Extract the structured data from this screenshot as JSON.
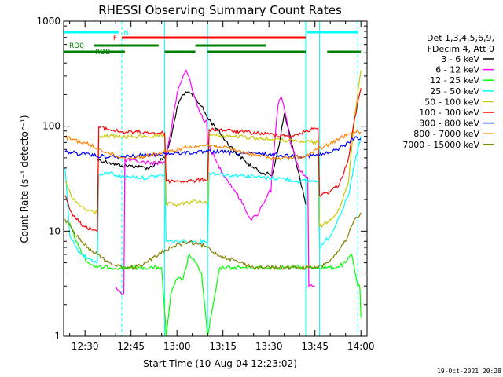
{
  "chart_data": {
    "type": "line",
    "title": "RHESSI Observing Summary Count Rates",
    "xlabel": "Start Time (10-Aug-04 12:23:02)",
    "ylabel": "Count Rate (s⁻¹ detector⁻¹)",
    "ylog": true,
    "ylim": [
      1,
      1000
    ],
    "xlim": [
      "12:23:02",
      "14:02:00"
    ],
    "x_ticks": [
      "12:30",
      "12:45",
      "13:00",
      "13:15",
      "13:30",
      "13:45",
      "14:00"
    ],
    "y_ticks": [
      "1",
      "10",
      "100",
      "1000"
    ],
    "legend_header": [
      "Det 1,3,4,5,6,9,",
      "FDecim 4, Att 0"
    ],
    "timestamp": "19-Oct-2021 20:28",
    "flag_bars": [
      {
        "label": "N",
        "color": "#00ffff",
        "segments": [
          [
            "12:23:02",
            "12:41:00"
          ],
          [
            "13:42:30",
            "13:59:00"
          ]
        ]
      },
      {
        "label": "F",
        "color": "#ff0000",
        "segments": [
          [
            "12:42:00",
            "13:42:00"
          ]
        ]
      },
      {
        "label": "RD0",
        "color": "#008000",
        "segments": [
          [
            "12:33:00",
            "12:54:00"
          ],
          [
            "13:06:00",
            "13:29:00"
          ]
        ]
      },
      {
        "label": "RDB",
        "color": "#008000",
        "segments": [
          [
            "12:23:02",
            "12:43:00"
          ],
          [
            "12:56:00",
            "13:06:00"
          ],
          [
            "13:10:00",
            "13:42:00"
          ],
          [
            "13:49:00",
            "14:00:00"
          ]
        ]
      }
    ],
    "dashed_vlines": [
      "12:42:00",
      "13:59:00"
    ],
    "solid_vlines": [
      "12:23:02",
      "12:56:00",
      "13:10:00",
      "13:42:00",
      "13:46:30"
    ],
    "series": [
      {
        "name": "3 - 6 keV",
        "color": "#000000",
        "x": [
          "12:34:00",
          "12:38:00",
          "12:42:00",
          "12:45:00",
          "12:48:00",
          "12:51:00",
          "12:54:00",
          "12:56:00",
          "12:58:00",
          "13:00:00",
          "13:02:00",
          "13:04:00",
          "13:06:00",
          "13:08:00",
          "13:10:00",
          "13:13:00",
          "13:16:00",
          "13:19:00",
          "13:22:00",
          "13:25:00",
          "13:28:00",
          "13:31:00",
          "13:33:00",
          "13:35:00",
          "13:37:00",
          "13:39:00",
          "13:41:00",
          "13:42:00"
        ],
        "y": [
          48,
          45,
          42,
          42,
          41,
          40,
          46,
          50,
          75,
          150,
          200,
          210,
          185,
          155,
          120,
          95,
          72,
          57,
          47,
          40,
          36,
          34,
          60,
          130,
          80,
          42,
          25,
          18
        ]
      },
      {
        "name": "6 - 12 keV",
        "color": "#ff00ff",
        "x": [
          "12:40:00",
          "12:42:00",
          "12:43:00",
          "12:47:00",
          "12:51:00",
          "12:56:00",
          "12:58:00",
          "13:00:00",
          "13:02:00",
          "13:03:00",
          "13:04:00",
          "13:05:00",
          "13:07:00",
          "13:09:00",
          "13:10:00",
          "13:13:00",
          "13:16:00",
          "13:19:00",
          "13:22:00",
          "13:24:00",
          "13:26:00",
          "13:28:00",
          "13:30:00",
          "13:31:00",
          "13:33:00",
          "13:34:00",
          "13:35:00",
          "13:37:00",
          "13:40:00",
          "13:42:00",
          "13:43:00",
          "13:45:00"
        ],
        "y": [
          3,
          2.5,
          48,
          46,
          45,
          45,
          90,
          200,
          300,
          340,
          290,
          220,
          150,
          110,
          70,
          45,
          32,
          24,
          17,
          13,
          14,
          18,
          24,
          38,
          160,
          190,
          150,
          70,
          38,
          33,
          3,
          3
        ]
      },
      {
        "name": "12 - 25 keV",
        "color": "#00ff00",
        "x": [
          "12:25:00",
          "12:28:00",
          "12:31:00",
          "12:34:00",
          "12:38:00",
          "12:42:00",
          "12:45:00",
          "12:48:00",
          "12:52:00",
          "12:55:00",
          "12:56:30",
          "12:58:00",
          "13:00:00",
          "13:02:00",
          "13:04:00",
          "13:06:00",
          "13:08:00",
          "13:10:00",
          "13:14:00",
          "13:18:00",
          "13:22:00",
          "13:26:00",
          "13:30:00",
          "13:34:00",
          "13:38:00",
          "13:42:00",
          "13:46:00",
          "13:49:00",
          "13:52:00",
          "13:55:00",
          "13:57:00",
          "13:59:00",
          "14:00:00"
        ],
        "y": [
          12,
          7,
          5,
          4.5,
          4.5,
          4.5,
          4.5,
          4.5,
          4.5,
          4.5,
          1,
          2.5,
          3.5,
          3.5,
          6,
          5,
          4,
          1,
          4.5,
          4.5,
          4.5,
          4.5,
          4.5,
          4.5,
          4.5,
          4.5,
          4.5,
          4.5,
          4.5,
          5,
          6,
          3,
          1.5
        ]
      },
      {
        "name": "25 - 50 keV",
        "color": "#00ffff",
        "x": [
          "12:23:30",
          "12:25:00",
          "12:27:00",
          "12:29:00",
          "12:31:00",
          "12:34:00",
          "12:34:30",
          "12:38:00",
          "12:42:00",
          "12:46:00",
          "12:50:00",
          "12:54:00",
          "12:56:00",
          "12:56:30",
          "13:01:00",
          "13:05:00",
          "13:09:00",
          "13:10:00",
          "13:10:30",
          "13:14:00",
          "13:18:00",
          "13:22:00",
          "13:26:00",
          "13:30:00",
          "13:34:00",
          "13:38:00",
          "13:42:00",
          "13:46:00",
          "13:46:30",
          "13:50:00",
          "13:53:00",
          "13:56:00",
          "13:58:00",
          "14:00:00"
        ],
        "y": [
          40,
          9,
          7,
          6,
          5.5,
          5,
          34,
          36,
          33,
          33,
          32,
          34,
          34,
          8,
          8,
          8,
          8,
          8,
          36,
          35,
          34,
          34,
          33,
          32,
          32,
          30,
          30,
          30,
          7,
          9,
          14,
          22,
          45,
          80
        ]
      },
      {
        "name": "50 - 100 keV",
        "color": "#c8c800",
        "x": [
          "12:23:30",
          "12:26:00",
          "12:30:00",
          "12:34:00",
          "12:34:30",
          "12:38:00",
          "12:42:00",
          "12:46:00",
          "12:50:00",
          "12:54:00",
          "12:56:00",
          "12:56:30",
          "13:01:00",
          "13:05:00",
          "13:09:00",
          "13:10:00",
          "13:10:30",
          "13:14:00",
          "13:18:00",
          "13:22:00",
          "13:26:00",
          "13:30:00",
          "13:34:00",
          "13:38:00",
          "13:42:00",
          "13:46:00",
          "13:46:30",
          "13:50:00",
          "13:53:00",
          "13:56:00",
          "13:58:00",
          "14:00:00"
        ],
        "y": [
          30,
          20,
          16,
          15,
          80,
          80,
          79,
          79,
          80,
          80,
          80,
          18,
          18,
          19,
          19,
          19,
          82,
          81,
          80,
          79,
          77,
          75,
          74,
          72,
          71,
          70,
          11,
          13,
          16,
          30,
          130,
          340
        ]
      },
      {
        "name": "100 - 300 keV",
        "color": "#ff0000",
        "x": [
          "12:23:30",
          "12:26:00",
          "12:30:00",
          "12:34:00",
          "12:34:30",
          "12:38:00",
          "12:42:00",
          "12:46:00",
          "12:50:00",
          "12:54:00",
          "12:56:00",
          "12:56:30",
          "13:01:00",
          "13:05:00",
          "13:09:00",
          "13:10:00",
          "13:10:30",
          "13:14:00",
          "13:18:00",
          "13:22:00",
          "13:26:00",
          "13:30:00",
          "13:34:00",
          "13:38:00",
          "13:42:00",
          "13:46:00",
          "13:46:30",
          "13:50:00",
          "13:53:00",
          "13:56:00",
          "13:58:00",
          "14:00:00"
        ],
        "y": [
          22,
          14,
          11,
          10,
          98,
          93,
          88,
          88,
          87,
          86,
          86,
          30,
          30,
          30,
          31,
          31,
          93,
          92,
          90,
          88,
          86,
          84,
          82,
          80,
          90,
          96,
          22,
          24,
          28,
          50,
          120,
          230
        ]
      },
      {
        "name": "300 - 800 keV",
        "color": "#0000ff",
        "x": [
          "12:23:30",
          "12:26:00",
          "12:30:00",
          "12:34:00",
          "12:38:00",
          "12:42:00",
          "12:46:00",
          "12:50:00",
          "12:54:00",
          "12:58:00",
          "13:02:00",
          "13:06:00",
          "13:10:00",
          "13:14:00",
          "13:18:00",
          "13:22:00",
          "13:26:00",
          "13:30:00",
          "13:34:00",
          "13:38:00",
          "13:42:00",
          "13:46:00",
          "13:50:00",
          "13:53:00",
          "13:56:00",
          "13:58:00",
          "14:00:00"
        ],
        "y": [
          57,
          56,
          54,
          52,
          51,
          51,
          52,
          53,
          54,
          55,
          56,
          56,
          57,
          57,
          56,
          55,
          55,
          54,
          53,
          52,
          52,
          53,
          56,
          62,
          70,
          78,
          76
        ]
      },
      {
        "name": "800 - 7000 keV",
        "color": "#ff8000",
        "x": [
          "12:23:30",
          "12:26:00",
          "12:30:00",
          "12:34:00",
          "12:38:00",
          "12:42:00",
          "12:46:00",
          "12:50:00",
          "12:54:00",
          "12:58:00",
          "13:02:00",
          "13:06:00",
          "13:10:00",
          "13:14:00",
          "13:18:00",
          "13:22:00",
          "13:26:00",
          "13:30:00",
          "13:34:00",
          "13:38:00",
          "13:42:00",
          "13:46:00",
          "13:50:00",
          "13:53:00",
          "13:56:00",
          "13:58:00",
          "14:00:00"
        ],
        "y": [
          78,
          75,
          69,
          62,
          55,
          50,
          50,
          52,
          55,
          58,
          62,
          65,
          66,
          64,
          60,
          56,
          53,
          50,
          49,
          50,
          52,
          60,
          68,
          76,
          84,
          88,
          88
        ]
      },
      {
        "name": "7000 - 15000 keV",
        "color": "#808000",
        "x": [
          "12:23:30",
          "12:26:00",
          "12:28:00",
          "12:31:00",
          "12:34:00",
          "12:38:00",
          "12:42:00",
          "12:46:00",
          "12:50:00",
          "12:54:00",
          "12:58:00",
          "13:01:00",
          "13:04:00",
          "13:07:00",
          "13:10:00",
          "13:13:00",
          "13:17:00",
          "13:21:00",
          "13:25:00",
          "13:29:00",
          "13:33:00",
          "13:37:00",
          "13:40:00",
          "13:43:00",
          "13:46:00",
          "13:49:00",
          "13:52:00",
          "13:55:00",
          "13:58:00",
          "14:00:00"
        ],
        "y": [
          13,
          10,
          8.5,
          7,
          6,
          5,
          4.5,
          4.5,
          5,
          6,
          7,
          7.5,
          7.8,
          7.5,
          7,
          6,
          5.5,
          5,
          4.5,
          4.5,
          4.5,
          4.5,
          4.5,
          4.5,
          4.5,
          5,
          6,
          8,
          13,
          15
        ]
      }
    ]
  }
}
